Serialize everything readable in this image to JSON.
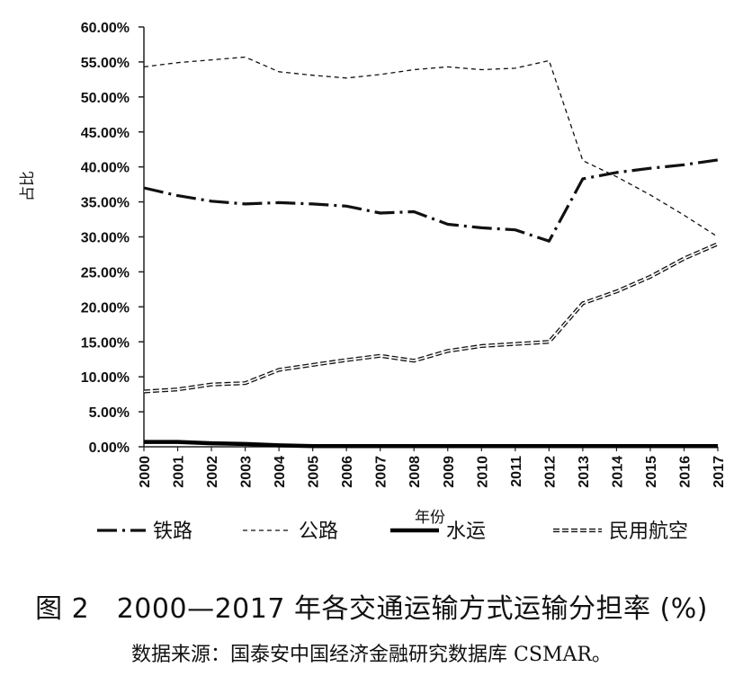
{
  "chart_data": {
    "type": "line",
    "ylabel": "占比",
    "xlabel": "年份",
    "ylim": [
      0,
      60
    ],
    "y_ticks": [
      "0.00%",
      "5.00%",
      "10.00%",
      "15.00%",
      "20.00%",
      "25.00%",
      "30.00%",
      "35.00%",
      "40.00%",
      "45.00%",
      "50.00%",
      "55.00%",
      "60.00%"
    ],
    "categories": [
      "2000",
      "2001",
      "2002",
      "2003",
      "2004",
      "2005",
      "2006",
      "2007",
      "2008",
      "2009",
      "2010",
      "2011",
      "2012",
      "2013",
      "2014",
      "2015",
      "2016",
      "2017"
    ],
    "grid": false,
    "legend_position": "bottom",
    "series": [
      {
        "name": "铁路",
        "style": "dash-dot",
        "color": "#111111",
        "values": [
          37.0,
          35.9,
          35.1,
          34.7,
          34.9,
          34.7,
          34.4,
          33.4,
          33.6,
          31.8,
          31.3,
          31.0,
          29.4,
          38.3,
          39.2,
          39.8,
          40.3,
          41.0
        ]
      },
      {
        "name": "公路",
        "style": "dashed",
        "color": "#111111",
        "values": [
          54.3,
          54.9,
          55.3,
          55.7,
          53.6,
          53.1,
          52.7,
          53.2,
          53.9,
          54.3,
          53.9,
          54.1,
          55.2,
          40.9,
          38.6,
          36.0,
          33.1,
          30.0
        ]
      },
      {
        "name": "水运",
        "style": "thick-solid",
        "color": "#000000",
        "values": [
          0.7,
          0.7,
          0.5,
          0.4,
          0.2,
          0.1,
          0.1,
          0.1,
          0.1,
          0.1,
          0.1,
          0.1,
          0.1,
          0.1,
          0.1,
          0.1,
          0.1,
          0.1
        ]
      },
      {
        "name": "民用航空",
        "style": "double-dashed",
        "color": "#111111",
        "values": [
          7.9,
          8.2,
          8.9,
          9.1,
          11.0,
          11.7,
          12.4,
          13.0,
          12.3,
          13.7,
          14.4,
          14.7,
          15.0,
          20.5,
          22.2,
          24.3,
          26.9,
          29.0
        ]
      }
    ]
  },
  "caption": {
    "title": "图 2　2000—2017 年各交通运输方式运输分担率 (%)",
    "source": "数据来源：国泰安中国经济金融研究数据库 CSMAR。"
  }
}
